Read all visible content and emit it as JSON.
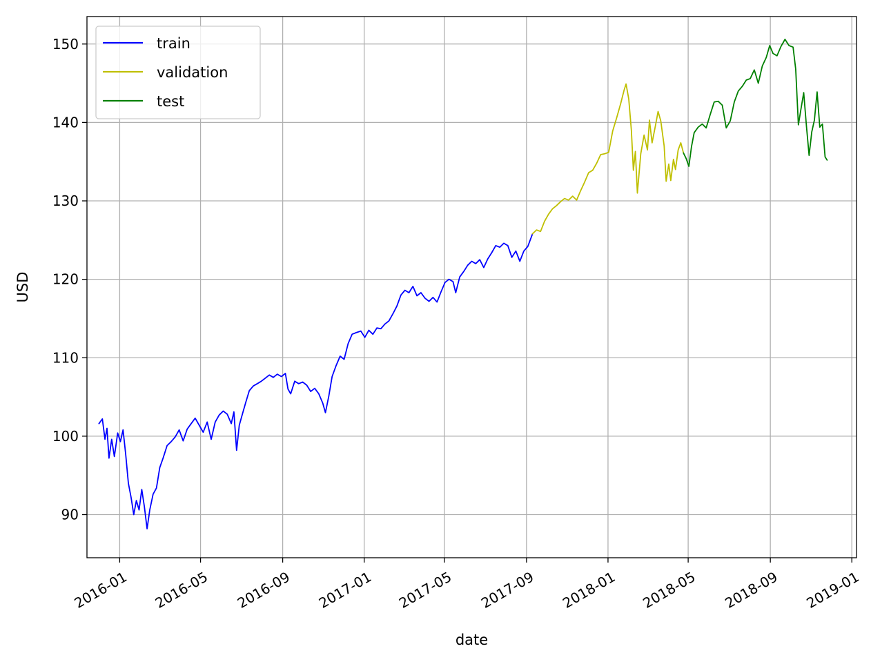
{
  "chart_data": {
    "type": "line",
    "title": "",
    "xlabel": "date",
    "ylabel": "USD",
    "grid": true,
    "legend_position": "upper-left",
    "xlim": [
      "2015-11-13",
      "2019-01-08"
    ],
    "ylim": [
      84.5,
      153.5
    ],
    "x_ticks": [
      "2016-01",
      "2016-05",
      "2016-09",
      "2017-01",
      "2017-05",
      "2017-09",
      "2018-01",
      "2018-05",
      "2018-09",
      "2019-01"
    ],
    "y_ticks": [
      90,
      100,
      110,
      120,
      130,
      140,
      150
    ],
    "series": [
      {
        "name": "train",
        "color": "#0000ff",
        "points": [
          [
            "2015-12-01",
            101.6
          ],
          [
            "2015-12-06",
            102.2
          ],
          [
            "2015-12-10",
            99.6
          ],
          [
            "2015-12-13",
            101.0
          ],
          [
            "2015-12-16",
            97.2
          ],
          [
            "2015-12-20",
            99.6
          ],
          [
            "2015-12-24",
            97.4
          ],
          [
            "2015-12-29",
            100.4
          ],
          [
            "2016-01-02",
            99.3
          ],
          [
            "2016-01-06",
            100.8
          ],
          [
            "2016-01-10",
            97.7
          ],
          [
            "2016-01-14",
            94.0
          ],
          [
            "2016-01-18",
            92.2
          ],
          [
            "2016-01-22",
            90.0
          ],
          [
            "2016-01-26",
            91.8
          ],
          [
            "2016-01-30",
            90.6
          ],
          [
            "2016-02-03",
            93.2
          ],
          [
            "2016-02-07",
            91.0
          ],
          [
            "2016-02-11",
            88.2
          ],
          [
            "2016-02-15",
            90.6
          ],
          [
            "2016-02-20",
            92.6
          ],
          [
            "2016-02-25",
            93.4
          ],
          [
            "2016-03-01",
            96.0
          ],
          [
            "2016-03-06",
            97.2
          ],
          [
            "2016-03-12",
            98.8
          ],
          [
            "2016-03-18",
            99.3
          ],
          [
            "2016-03-24",
            99.9
          ],
          [
            "2016-03-30",
            100.8
          ],
          [
            "2016-04-05",
            99.4
          ],
          [
            "2016-04-11",
            100.9
          ],
          [
            "2016-04-17",
            101.6
          ],
          [
            "2016-04-23",
            102.3
          ],
          [
            "2016-04-29",
            101.4
          ],
          [
            "2016-05-05",
            100.5
          ],
          [
            "2016-05-11",
            101.8
          ],
          [
            "2016-05-17",
            99.6
          ],
          [
            "2016-05-23",
            101.8
          ],
          [
            "2016-05-29",
            102.7
          ],
          [
            "2016-06-04",
            103.2
          ],
          [
            "2016-06-10",
            102.8
          ],
          [
            "2016-06-16",
            101.6
          ],
          [
            "2016-06-20",
            103.1
          ],
          [
            "2016-06-24",
            98.2
          ],
          [
            "2016-06-28",
            101.4
          ],
          [
            "2016-07-03",
            102.9
          ],
          [
            "2016-07-08",
            104.4
          ],
          [
            "2016-07-13",
            105.8
          ],
          [
            "2016-07-19",
            106.4
          ],
          [
            "2016-07-25",
            106.7
          ],
          [
            "2016-07-31",
            107.0
          ],
          [
            "2016-08-06",
            107.4
          ],
          [
            "2016-08-12",
            107.8
          ],
          [
            "2016-08-18",
            107.5
          ],
          [
            "2016-08-24",
            107.9
          ],
          [
            "2016-08-30",
            107.6
          ],
          [
            "2016-09-05",
            108.0
          ],
          [
            "2016-09-09",
            106.0
          ],
          [
            "2016-09-13",
            105.4
          ],
          [
            "2016-09-19",
            107.0
          ],
          [
            "2016-09-25",
            106.7
          ],
          [
            "2016-10-01",
            106.9
          ],
          [
            "2016-10-07",
            106.5
          ],
          [
            "2016-10-13",
            105.7
          ],
          [
            "2016-10-19",
            106.1
          ],
          [
            "2016-10-25",
            105.4
          ],
          [
            "2016-10-31",
            104.2
          ],
          [
            "2016-11-04",
            103.0
          ],
          [
            "2016-11-09",
            105.1
          ],
          [
            "2016-11-14",
            107.6
          ],
          [
            "2016-11-20",
            109.0
          ],
          [
            "2016-11-26",
            110.2
          ],
          [
            "2016-12-02",
            109.8
          ],
          [
            "2016-12-08",
            111.8
          ],
          [
            "2016-12-14",
            113.0
          ],
          [
            "2016-12-20",
            113.2
          ],
          [
            "2016-12-27",
            113.4
          ],
          [
            "2017-01-02",
            112.6
          ],
          [
            "2017-01-08",
            113.5
          ],
          [
            "2017-01-14",
            113.0
          ],
          [
            "2017-01-20",
            113.8
          ],
          [
            "2017-01-26",
            113.7
          ],
          [
            "2017-02-01",
            114.3
          ],
          [
            "2017-02-07",
            114.7
          ],
          [
            "2017-02-13",
            115.6
          ],
          [
            "2017-02-19",
            116.6
          ],
          [
            "2017-02-25",
            118.0
          ],
          [
            "2017-03-03",
            118.6
          ],
          [
            "2017-03-09",
            118.3
          ],
          [
            "2017-03-15",
            119.1
          ],
          [
            "2017-03-21",
            117.9
          ],
          [
            "2017-03-27",
            118.3
          ],
          [
            "2017-04-02",
            117.6
          ],
          [
            "2017-04-08",
            117.2
          ],
          [
            "2017-04-14",
            117.7
          ],
          [
            "2017-04-20",
            117.1
          ],
          [
            "2017-04-26",
            118.4
          ],
          [
            "2017-05-02",
            119.6
          ],
          [
            "2017-05-08",
            120.0
          ],
          [
            "2017-05-14",
            119.7
          ],
          [
            "2017-05-18",
            118.3
          ],
          [
            "2017-05-24",
            120.3
          ],
          [
            "2017-05-30",
            121.0
          ],
          [
            "2017-06-05",
            121.8
          ],
          [
            "2017-06-11",
            122.3
          ],
          [
            "2017-06-17",
            122.0
          ],
          [
            "2017-06-23",
            122.5
          ],
          [
            "2017-06-29",
            121.5
          ],
          [
            "2017-07-05",
            122.6
          ],
          [
            "2017-07-11",
            123.4
          ],
          [
            "2017-07-17",
            124.3
          ],
          [
            "2017-07-23",
            124.1
          ],
          [
            "2017-07-29",
            124.6
          ],
          [
            "2017-08-04",
            124.3
          ],
          [
            "2017-08-10",
            122.8
          ],
          [
            "2017-08-16",
            123.6
          ],
          [
            "2017-08-22",
            122.3
          ],
          [
            "2017-08-28",
            123.6
          ],
          [
            "2017-09-03",
            124.2
          ],
          [
            "2017-09-10",
            125.8
          ]
        ]
      },
      {
        "name": "validation",
        "color": "#bfbf00",
        "points": [
          [
            "2017-09-10",
            125.8
          ],
          [
            "2017-09-16",
            126.3
          ],
          [
            "2017-09-22",
            126.1
          ],
          [
            "2017-09-28",
            127.4
          ],
          [
            "2017-10-04",
            128.3
          ],
          [
            "2017-10-10",
            129.0
          ],
          [
            "2017-10-16",
            129.4
          ],
          [
            "2017-10-22",
            129.9
          ],
          [
            "2017-10-28",
            130.3
          ],
          [
            "2017-11-03",
            130.1
          ],
          [
            "2017-11-09",
            130.6
          ],
          [
            "2017-11-15",
            130.1
          ],
          [
            "2017-11-21",
            131.3
          ],
          [
            "2017-11-27",
            132.4
          ],
          [
            "2017-12-03",
            133.6
          ],
          [
            "2017-12-09",
            133.9
          ],
          [
            "2017-12-15",
            134.8
          ],
          [
            "2017-12-21",
            135.9
          ],
          [
            "2017-12-27",
            136.0
          ],
          [
            "2018-01-02",
            136.2
          ],
          [
            "2018-01-08",
            138.9
          ],
          [
            "2018-01-14",
            140.6
          ],
          [
            "2018-01-20",
            142.4
          ],
          [
            "2018-01-25",
            144.1
          ],
          [
            "2018-01-28",
            144.9
          ],
          [
            "2018-02-01",
            143.0
          ],
          [
            "2018-02-05",
            139.0
          ],
          [
            "2018-02-08",
            133.9
          ],
          [
            "2018-02-11",
            136.3
          ],
          [
            "2018-02-14",
            131.0
          ],
          [
            "2018-02-19",
            136.0
          ],
          [
            "2018-02-24",
            138.4
          ],
          [
            "2018-03-01",
            136.5
          ],
          [
            "2018-03-04",
            140.3
          ],
          [
            "2018-03-08",
            137.4
          ],
          [
            "2018-03-13",
            139.6
          ],
          [
            "2018-03-17",
            141.4
          ],
          [
            "2018-03-21",
            140.2
          ],
          [
            "2018-03-26",
            137.0
          ],
          [
            "2018-03-29",
            132.5
          ],
          [
            "2018-04-02",
            134.7
          ],
          [
            "2018-04-05",
            132.6
          ],
          [
            "2018-04-09",
            135.3
          ],
          [
            "2018-04-12",
            134.0
          ],
          [
            "2018-04-16",
            136.5
          ],
          [
            "2018-04-20",
            137.4
          ],
          [
            "2018-04-24",
            136.1
          ]
        ]
      },
      {
        "name": "test",
        "color": "#008000",
        "points": [
          [
            "2018-04-24",
            136.1
          ],
          [
            "2018-04-28",
            135.4
          ],
          [
            "2018-05-02",
            134.4
          ],
          [
            "2018-05-06",
            136.9
          ],
          [
            "2018-05-10",
            138.7
          ],
          [
            "2018-05-16",
            139.4
          ],
          [
            "2018-05-22",
            139.8
          ],
          [
            "2018-05-28",
            139.3
          ],
          [
            "2018-06-03",
            141.0
          ],
          [
            "2018-06-09",
            142.6
          ],
          [
            "2018-06-15",
            142.7
          ],
          [
            "2018-06-21",
            142.2
          ],
          [
            "2018-06-27",
            139.3
          ],
          [
            "2018-07-03",
            140.2
          ],
          [
            "2018-07-09",
            142.6
          ],
          [
            "2018-07-15",
            144.0
          ],
          [
            "2018-07-21",
            144.6
          ],
          [
            "2018-07-27",
            145.4
          ],
          [
            "2018-08-02",
            145.6
          ],
          [
            "2018-08-08",
            146.7
          ],
          [
            "2018-08-14",
            145.0
          ],
          [
            "2018-08-20",
            147.2
          ],
          [
            "2018-08-26",
            148.3
          ],
          [
            "2018-08-31",
            149.8
          ],
          [
            "2018-09-05",
            148.8
          ],
          [
            "2018-09-11",
            148.5
          ],
          [
            "2018-09-17",
            149.7
          ],
          [
            "2018-09-23",
            150.6
          ],
          [
            "2018-09-29",
            149.8
          ],
          [
            "2018-10-05",
            149.6
          ],
          [
            "2018-10-09",
            146.8
          ],
          [
            "2018-10-13",
            139.7
          ],
          [
            "2018-10-17",
            141.8
          ],
          [
            "2018-10-21",
            143.8
          ],
          [
            "2018-10-25",
            139.6
          ],
          [
            "2018-10-29",
            135.8
          ],
          [
            "2018-11-02",
            138.8
          ],
          [
            "2018-11-06",
            140.3
          ],
          [
            "2018-11-10",
            143.9
          ],
          [
            "2018-11-14",
            139.4
          ],
          [
            "2018-11-18",
            139.8
          ],
          [
            "2018-11-22",
            135.6
          ],
          [
            "2018-11-25",
            135.2
          ]
        ]
      }
    ]
  }
}
